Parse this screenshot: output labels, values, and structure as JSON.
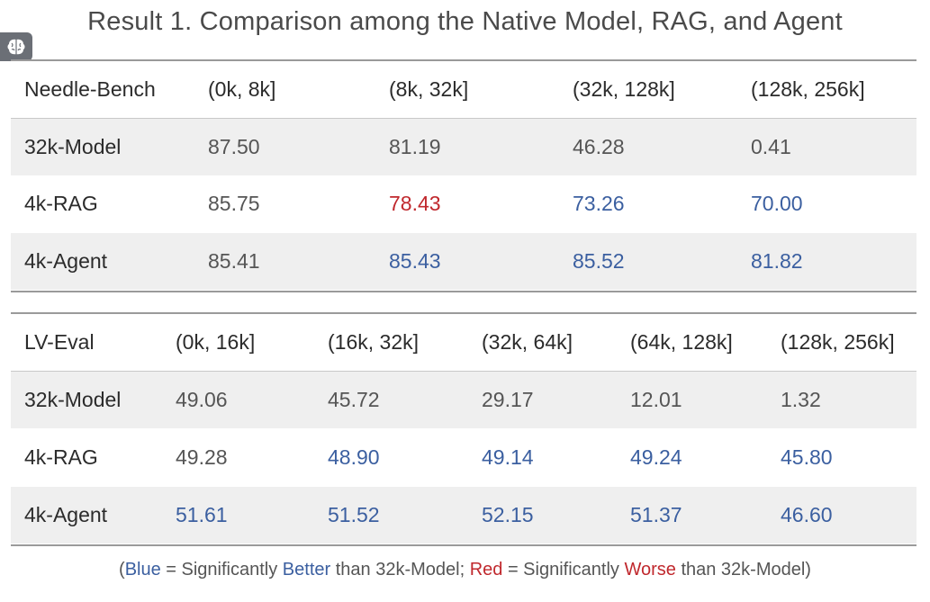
{
  "title": "Result 1. Comparison among the Native Model, RAG, and Agent",
  "logo_icon": "brain-icon",
  "colors": {
    "better": "#3b5fa0",
    "worse": "#c0282d",
    "shade": "#efefef"
  },
  "table1": {
    "headers": [
      "Needle-Bench",
      "(0k, 8k]",
      "(8k, 32k]",
      "(32k, 128k]",
      "(128k, 256k]"
    ],
    "rows": [
      {
        "label": "32k-Model",
        "values": [
          "87.50",
          "81.19",
          "46.28",
          "0.41"
        ],
        "flags": [
          "",
          "",
          "",
          ""
        ]
      },
      {
        "label": "4k-RAG",
        "values": [
          "85.75",
          "78.43",
          "73.26",
          "70.00"
        ],
        "flags": [
          "",
          "worse",
          "better",
          "better"
        ]
      },
      {
        "label": "4k-Agent",
        "values": [
          "85.41",
          "85.43",
          "85.52",
          "81.82"
        ],
        "flags": [
          "",
          "better",
          "better",
          "better"
        ]
      }
    ]
  },
  "table2": {
    "headers": [
      "LV-Eval",
      "(0k, 16k]",
      "(16k, 32k]",
      "(32k, 64k]",
      "(64k, 128k]",
      "(128k, 256k]"
    ],
    "rows": [
      {
        "label": "32k-Model",
        "values": [
          "49.06",
          "45.72",
          "29.17",
          "12.01",
          "1.32"
        ],
        "flags": [
          "",
          "",
          "",
          "",
          ""
        ]
      },
      {
        "label": "4k-RAG",
        "values": [
          "49.28",
          "48.90",
          "49.14",
          "49.24",
          "45.80"
        ],
        "flags": [
          "",
          "better",
          "better",
          "better",
          "better"
        ]
      },
      {
        "label": "4k-Agent",
        "values": [
          "51.61",
          "51.52",
          "52.15",
          "51.37",
          "46.60"
        ],
        "flags": [
          "better",
          "better",
          "better",
          "better",
          "better"
        ]
      }
    ]
  },
  "legend": {
    "open": "(",
    "blue": "Blue",
    "eq1": " = Significantly ",
    "better": "Better",
    "than1": " than 32k-Model; ",
    "red": "Red",
    "eq2": " = Significantly ",
    "worse": "Worse",
    "than2": " than 32k-Model)"
  }
}
